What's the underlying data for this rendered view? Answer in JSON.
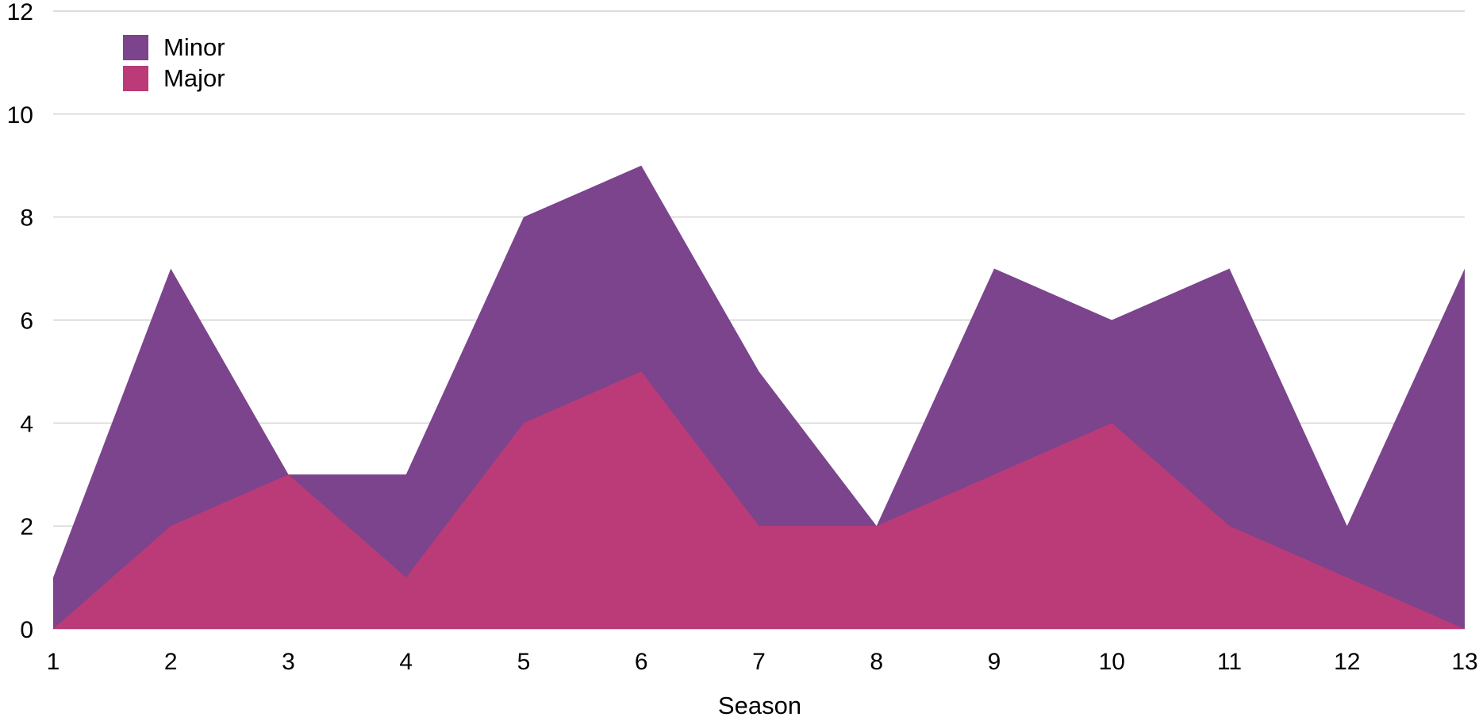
{
  "chart_data": {
    "type": "area",
    "stacked": false,
    "title": "",
    "xlabel": "Season",
    "ylabel": "",
    "x": [
      1,
      2,
      3,
      4,
      5,
      6,
      7,
      8,
      9,
      10,
      11,
      12,
      13
    ],
    "ylim": [
      0,
      12
    ],
    "yticks": [
      0,
      2,
      4,
      6,
      8,
      10,
      12
    ],
    "grid": true,
    "legend_position": "top-left",
    "series": [
      {
        "name": "Minor",
        "color": "#7b448c",
        "values": [
          1,
          7,
          3,
          3,
          8,
          9,
          5,
          2,
          7,
          6,
          7,
          2,
          7
        ]
      },
      {
        "name": "Major",
        "color": "#bb3b78",
        "values": [
          0,
          2,
          3,
          1,
          4,
          5,
          2,
          2,
          3,
          4,
          2,
          1,
          0
        ]
      }
    ]
  }
}
